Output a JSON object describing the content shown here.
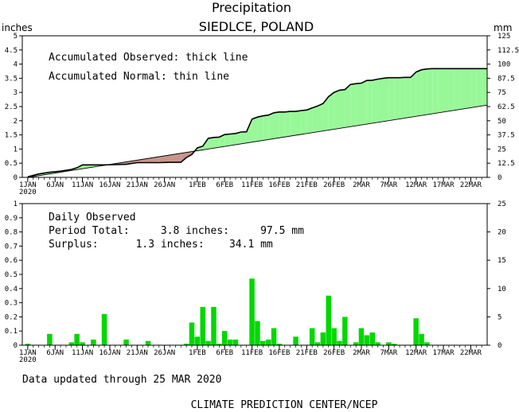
{
  "chart_data": [
    {
      "type": "area",
      "title": "Precipitation",
      "subtitle": "SIEDLCE, POLAND",
      "ylabel": "inches",
      "ylabel_right": "mm",
      "ylim": [
        0,
        5
      ],
      "ylim_right": [
        0,
        125
      ],
      "yticks": [
        "0",
        "0.5",
        "1",
        "1.5",
        "2",
        "2.5",
        "3",
        "3.5",
        "4",
        "4.5",
        "5"
      ],
      "yticks_right": [
        "0",
        "12.5",
        "25",
        "37.5",
        "50",
        "62.5",
        "75",
        "87.5",
        "100",
        "112.5",
        "125"
      ],
      "xticks": [
        {
          "day": 1,
          "label": "1JAN",
          "sub": "2020"
        },
        {
          "day": 6,
          "label": "6JAN"
        },
        {
          "day": 11,
          "label": "11JAN"
        },
        {
          "day": 16,
          "label": "16JAN"
        },
        {
          "day": 21,
          "label": "21JAN"
        },
        {
          "day": 26,
          "label": "26JAN"
        },
        {
          "day": 32,
          "label": "1FEB"
        },
        {
          "day": 37,
          "label": "6FEB"
        },
        {
          "day": 42,
          "label": "11FEB"
        },
        {
          "day": 47,
          "label": "16FEB"
        },
        {
          "day": 52,
          "label": "21FEB"
        },
        {
          "day": 57,
          "label": "26FEB"
        },
        {
          "day": 62,
          "label": "2MAR"
        },
        {
          "day": 67,
          "label": "7MAR"
        },
        {
          "day": 72,
          "label": "12MAR"
        },
        {
          "day": 77,
          "label": "17MAR"
        },
        {
          "day": 82,
          "label": "22MAR"
        }
      ],
      "annotations": [
        "Accumulated Observed: thick line",
        "Accumulated Normal: thin line"
      ],
      "colors": {
        "surplus": "#98f898",
        "deficit": "#c8968c"
      },
      "series": [
        {
          "name": "Accumulated Observed",
          "x": [
            1,
            3,
            5,
            7,
            9,
            10,
            11,
            13,
            15,
            17,
            19,
            21,
            23,
            25,
            27,
            29,
            30,
            31,
            32,
            33,
            34,
            35,
            36,
            37,
            38,
            39,
            40,
            41,
            42,
            43,
            44,
            45,
            46,
            47,
            48,
            49,
            50,
            51,
            52,
            53,
            54,
            55,
            56,
            57,
            58,
            59,
            60,
            61,
            62,
            63,
            64,
            65,
            66,
            67,
            68,
            69,
            70,
            71,
            72,
            73,
            74,
            75,
            76,
            77,
            78,
            79,
            80,
            81,
            82,
            83,
            84,
            85
          ],
          "values": [
            0.02,
            0.12,
            0.18,
            0.22,
            0.28,
            0.34,
            0.44,
            0.44,
            0.44,
            0.45,
            0.46,
            0.52,
            0.52,
            0.52,
            0.53,
            0.53,
            0.7,
            0.81,
            1.04,
            1.1,
            1.38,
            1.41,
            1.42,
            1.51,
            1.53,
            1.55,
            1.6,
            1.61,
            2.06,
            2.13,
            2.17,
            2.2,
            2.28,
            2.31,
            2.31,
            2.33,
            2.33,
            2.36,
            2.38,
            2.45,
            2.52,
            2.61,
            2.85,
            3.0,
            3.08,
            3.1,
            3.28,
            3.31,
            3.33,
            3.42,
            3.43,
            3.47,
            3.5,
            3.52,
            3.52,
            3.52,
            3.53,
            3.53,
            3.72,
            3.8,
            3.83,
            3.84,
            3.84,
            3.84,
            3.84,
            3.84,
            3.84,
            3.84,
            3.84,
            3.84,
            3.84,
            3.84
          ]
        },
        {
          "name": "Accumulated Normal",
          "x": [
            1,
            85
          ],
          "values": [
            0.0,
            2.55
          ]
        }
      ]
    },
    {
      "type": "bar",
      "ylim": [
        0,
        1
      ],
      "ylim_right": [
        0,
        25
      ],
      "yticks": [
        "0",
        "0.1",
        "0.2",
        "0.3",
        "0.4",
        "0.5",
        "0.6",
        "0.7",
        "0.8",
        "0.9",
        "1"
      ],
      "yticks_right": [
        "0",
        "5",
        "10",
        "15",
        "20",
        "25"
      ],
      "annotations": [
        "Daily Observed",
        "Period Total:     3.8 inches:     97.5 mm",
        "Surplus:      1.3 inches:    34.1 mm"
      ],
      "bar_color": "#00d800",
      "series": [
        {
          "name": "Daily Observed",
          "x": [
            1,
            5,
            9,
            10,
            11,
            13,
            15,
            19,
            23,
            30,
            31,
            32,
            33,
            34,
            35,
            36,
            37,
            38,
            39,
            42,
            43,
            44,
            45,
            46,
            47,
            50,
            53,
            54,
            55,
            56,
            57,
            58,
            59,
            61,
            62,
            63,
            64,
            65,
            67,
            68,
            72,
            73,
            74
          ],
          "values": [
            0.01,
            0.08,
            0.02,
            0.08,
            0.02,
            0.04,
            0.22,
            0.04,
            0.03,
            0.01,
            0.16,
            0.06,
            0.27,
            0.03,
            0.27,
            0.01,
            0.1,
            0.04,
            0.04,
            0.47,
            0.17,
            0.03,
            0.04,
            0.12,
            0.01,
            0.06,
            0.12,
            0.02,
            0.09,
            0.35,
            0.12,
            0.03,
            0.2,
            0.02,
            0.12,
            0.07,
            0.09,
            0.02,
            0.02,
            0.01,
            0.19,
            0.08,
            0.02
          ]
        }
      ]
    }
  ],
  "footer": {
    "updated": "Data updated through 25 MAR 2020",
    "credit": "CLIMATE PREDICTION CENTER/NCEP"
  }
}
